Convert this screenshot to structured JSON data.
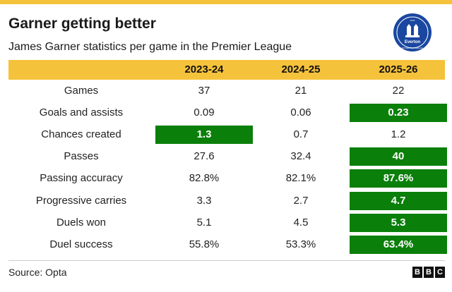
{
  "title": "Garner getting better",
  "subtitle": "James Garner statistics per game in the Premier League",
  "crest": {
    "text": "Everton",
    "motto": "Nil Satis Nisi Optimum",
    "year": "1878"
  },
  "columns": [
    "2023-24",
    "2024-25",
    "2025-26"
  ],
  "colors": {
    "header_yellow": "#f5c23b",
    "highlight_green": "#0a7f0a",
    "crest_blue": "#1a47a0"
  },
  "rows": [
    {
      "label": "Games",
      "values": [
        "37",
        "21",
        "22"
      ],
      "highlight": [
        false,
        false,
        false
      ]
    },
    {
      "label": "Goals and assists",
      "values": [
        "0.09",
        "0.06",
        "0.23"
      ],
      "highlight": [
        false,
        false,
        true
      ]
    },
    {
      "label": "Chances created",
      "values": [
        "1.3",
        "0.7",
        "1.2"
      ],
      "highlight": [
        true,
        false,
        false
      ]
    },
    {
      "label": "Passes",
      "values": [
        "27.6",
        "32.4",
        "40"
      ],
      "highlight": [
        false,
        false,
        true
      ]
    },
    {
      "label": "Passing accuracy",
      "values": [
        "82.8%",
        "82.1%",
        "87.6%"
      ],
      "highlight": [
        false,
        false,
        true
      ]
    },
    {
      "label": "Progressive carries",
      "values": [
        "3.3",
        "2.7",
        "4.7"
      ],
      "highlight": [
        false,
        false,
        true
      ]
    },
    {
      "label": "Duels won",
      "values": [
        "5.1",
        "4.5",
        "5.3"
      ],
      "highlight": [
        false,
        false,
        true
      ]
    },
    {
      "label": "Duel success",
      "values": [
        "55.8%",
        "53.3%",
        "63.4%"
      ],
      "highlight": [
        false,
        false,
        true
      ]
    }
  ],
  "source": "Source: Opta",
  "logo": [
    "B",
    "B",
    "C"
  ]
}
